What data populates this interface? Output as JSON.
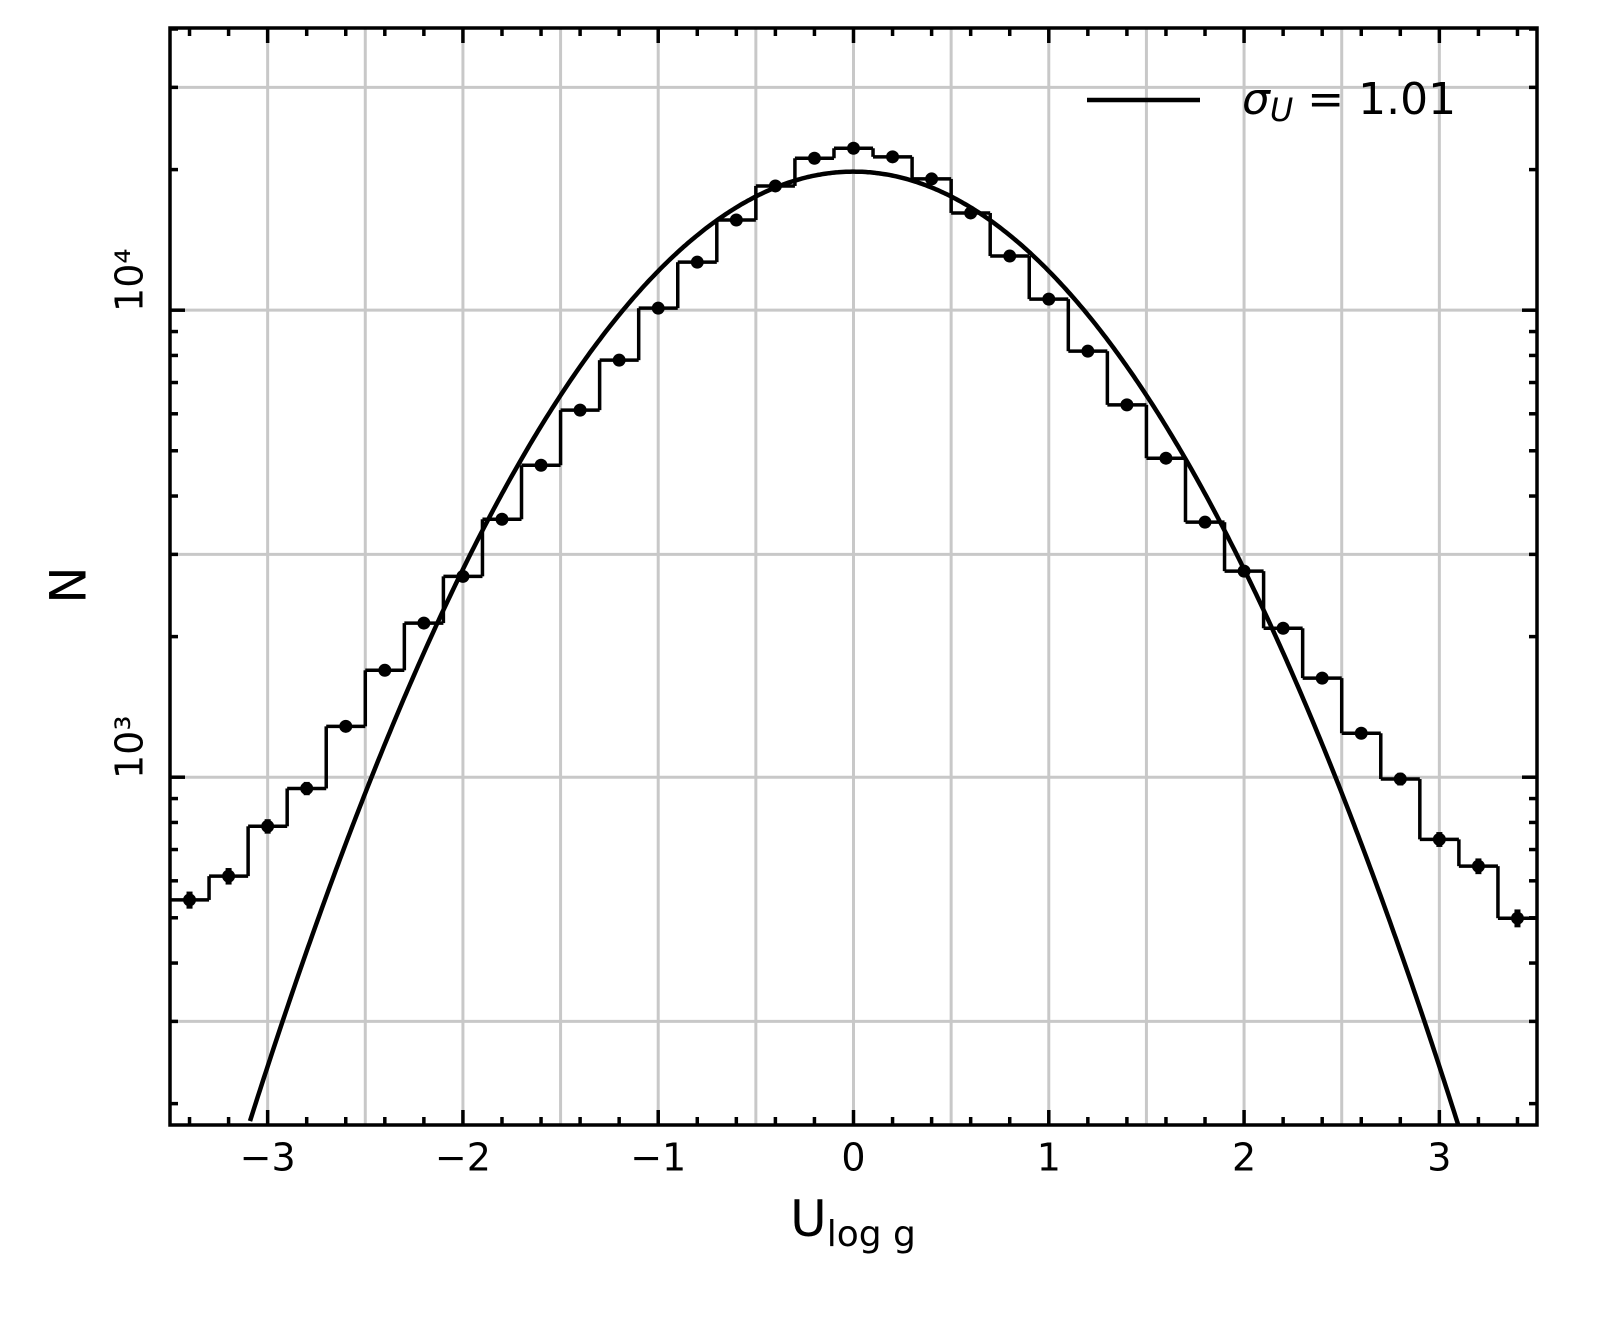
{
  "chart_data": {
    "type": "histogram",
    "xlabel": "U",
    "xlabel_subscript": "log g",
    "ylabel": "N",
    "bins": [
      -3.5,
      -3.3,
      -3.1,
      -2.9,
      -2.7,
      -2.5,
      -2.3,
      -2.1,
      -1.9,
      -1.7,
      -1.5,
      -1.3,
      -1.1,
      -0.9,
      -0.7,
      -0.5,
      -0.3,
      -0.1,
      0.1,
      0.3,
      0.5,
      0.7,
      0.9,
      1.1,
      1.3,
      1.5,
      1.7,
      1.9,
      2.1,
      2.3,
      2.5,
      2.7,
      2.9,
      3.1,
      3.3,
      3.5
    ],
    "values": [
      546,
      614,
      785,
      946,
      1285,
      1694,
      2138,
      2692,
      3567,
      4656,
      6109,
      7816,
      10100,
      12670,
      15600,
      18450,
      21150,
      22220,
      21300,
      19100,
      16150,
      13060,
      10560,
      8170,
      6270,
      4820,
      3516,
      2762,
      2084,
      1630,
      1242,
      991,
      736,
      645,
      499
    ],
    "errors": [
      23,
      25,
      28,
      31,
      36,
      41,
      46,
      52,
      60,
      68,
      78,
      88,
      100,
      113,
      125,
      136,
      145,
      149,
      146,
      138,
      127,
      114,
      103,
      90,
      79,
      69,
      59,
      53,
      46,
      40,
      35,
      31,
      27,
      25,
      22
    ],
    "color": "#000000",
    "fit": {
      "amplitude": 19800,
      "sigma": 1.01,
      "label": "σ",
      "label_subscript": "U",
      "label_suffix": " = 1.01",
      "color": "#000000"
    },
    "legend": "upper right",
    "xlim": [
      -3.5,
      3.5
    ],
    "xticks": [
      {
        "value": -3,
        "label": "−3"
      },
      {
        "value": -2,
        "label": "−2"
      },
      {
        "value": -1,
        "label": "−1"
      },
      0,
      1,
      2,
      3
    ],
    "xminor": [
      -3.4,
      -3.2,
      -2.8,
      -2.6,
      -2.4,
      -2.2,
      -1.8,
      -1.6,
      -1.4,
      -1.2,
      -0.8,
      -0.6,
      -0.4,
      -0.2,
      0.2,
      0.4,
      0.6,
      0.8,
      1.2,
      1.4,
      1.6,
      1.8,
      2.2,
      2.4,
      2.6,
      2.8,
      3.2,
      3.4
    ],
    "xgrid": [
      -3,
      -2.5,
      -2,
      -1.5,
      -1,
      -0.5,
      0,
      0.5,
      1,
      1.5,
      2,
      2.5,
      3
    ],
    "ylim": [
      180,
      40200
    ],
    "log_y": true,
    "yticks": [
      {
        "value": 1000,
        "label": "10³"
      },
      {
        "value": 10000,
        "label": "10⁴"
      }
    ],
    "yminor": [
      200,
      300,
      400,
      500,
      600,
      700,
      800,
      900,
      2000,
      3000,
      4000,
      5000,
      6000,
      7000,
      8000,
      9000,
      20000,
      30000,
      40000
    ],
    "ygrid": [
      300,
      1000,
      3000,
      10000,
      30000
    ],
    "grid": true
  }
}
